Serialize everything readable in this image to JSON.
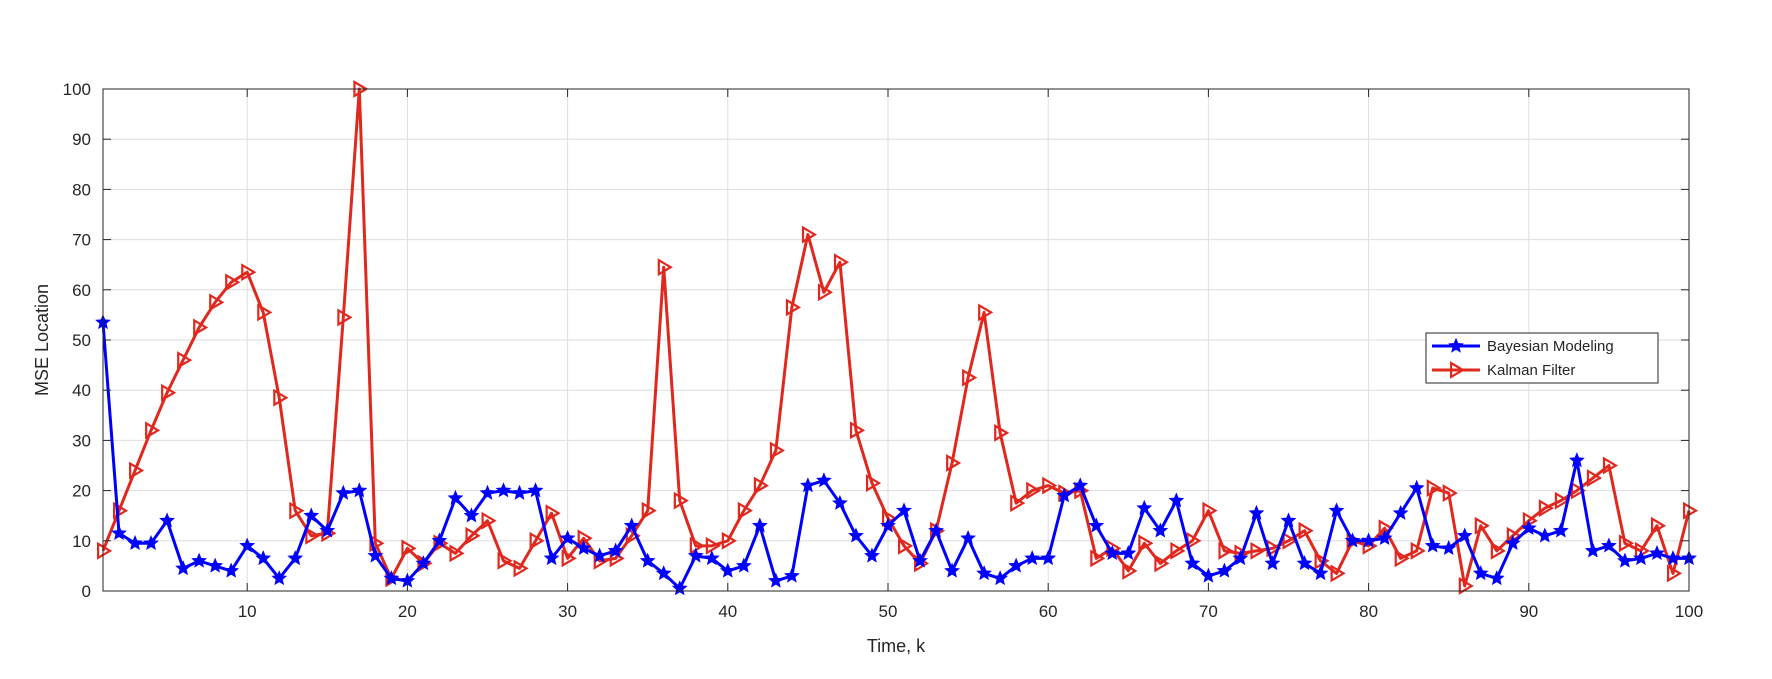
{
  "chart_data": {
    "type": "line",
    "title": "",
    "xlabel": "Time, k",
    "ylabel": "MSE Location",
    "xlim": [
      1,
      100
    ],
    "ylim": [
      0,
      100
    ],
    "xticks": [
      10,
      20,
      30,
      40,
      50,
      60,
      70,
      80,
      90,
      100
    ],
    "yticks": [
      0,
      10,
      20,
      30,
      40,
      50,
      60,
      70,
      80,
      90,
      100
    ],
    "grid": true,
    "legend_position": "right",
    "series": [
      {
        "name": "Bayesian Modeling",
        "color": "#0000ff",
        "marker": "star",
        "x": [
          1,
          2,
          3,
          4,
          5,
          6,
          7,
          8,
          9,
          10,
          11,
          12,
          13,
          14,
          15,
          16,
          17,
          18,
          19,
          20,
          21,
          22,
          23,
          24,
          25,
          26,
          27,
          28,
          29,
          30,
          31,
          32,
          33,
          34,
          35,
          36,
          37,
          38,
          39,
          40,
          41,
          42,
          43,
          44,
          45,
          46,
          47,
          48,
          49,
          50,
          51,
          52,
          53,
          54,
          55,
          56,
          57,
          58,
          59,
          60,
          61,
          62,
          63,
          64,
          65,
          66,
          67,
          68,
          69,
          70,
          71,
          72,
          73,
          74,
          75,
          76,
          77,
          78,
          79,
          80,
          81,
          82,
          83,
          84,
          85,
          86,
          87,
          88,
          89,
          90,
          91,
          92,
          93,
          94,
          95,
          96,
          97,
          98,
          99,
          100
        ],
        "values": [
          53.5,
          11.5,
          9.5,
          9.5,
          14,
          4.5,
          6,
          5,
          4,
          9,
          6.5,
          2.5,
          6.5,
          15,
          12,
          19.5,
          20,
          7,
          2.5,
          2,
          5.5,
          10,
          18.5,
          15,
          19.5,
          20,
          19.5,
          20,
          6.5,
          10.5,
          8.5,
          7,
          8,
          13,
          6,
          3.5,
          0.5,
          7,
          6.5,
          4,
          5,
          13,
          2,
          3,
          21,
          22,
          17.5,
          11,
          7,
          13,
          16,
          6,
          12,
          4,
          10.5,
          3.5,
          2.5,
          5,
          6.5,
          6.5,
          19,
          21,
          13,
          7.5,
          7.5,
          16.5,
          12,
          18,
          5.5,
          3,
          4,
          6.5,
          15.5,
          5.5,
          14,
          5.5,
          3.5,
          16,
          10,
          10,
          10.5,
          15.5,
          20.5,
          9,
          8.5,
          11,
          3.5,
          2.5,
          9.5,
          12.5,
          11,
          12,
          26,
          8,
          9,
          6,
          6.5,
          7.5,
          6.5,
          6.5
        ]
      },
      {
        "name": "Kalman Filter",
        "color": "#e0281e",
        "marker": "triangle-right",
        "x": [
          1,
          2,
          3,
          4,
          5,
          6,
          7,
          8,
          9,
          10,
          11,
          12,
          13,
          14,
          15,
          16,
          17,
          18,
          19,
          20,
          21,
          22,
          23,
          24,
          25,
          26,
          27,
          28,
          29,
          30,
          31,
          32,
          33,
          34,
          35,
          36,
          37,
          38,
          39,
          40,
          41,
          42,
          43,
          44,
          45,
          46,
          47,
          48,
          49,
          50,
          51,
          52,
          53,
          54,
          55,
          56,
          57,
          58,
          59,
          60,
          61,
          62,
          63,
          64,
          65,
          66,
          67,
          68,
          69,
          70,
          71,
          72,
          73,
          74,
          75,
          76,
          77,
          78,
          79,
          80,
          81,
          82,
          83,
          84,
          85,
          86,
          87,
          88,
          89,
          90,
          91,
          92,
          93,
          94,
          95,
          96,
          97,
          98,
          99,
          100
        ],
        "values": [
          8,
          16,
          24,
          32,
          39.5,
          46,
          52.5,
          57.5,
          61.5,
          63.5,
          55.5,
          38.5,
          16,
          11,
          11.5,
          54.5,
          100,
          9.5,
          2.5,
          8.5,
          5.5,
          9.5,
          7.5,
          11,
          14,
          6,
          4.5,
          10,
          15.5,
          6.5,
          10.5,
          6,
          6.5,
          11,
          16,
          64.5,
          18,
          9,
          9,
          10,
          16,
          21,
          28,
          56.5,
          71,
          59.5,
          65.5,
          32,
          21.5,
          14.5,
          9,
          5.5,
          12,
          25.5,
          42.5,
          55.5,
          31.5,
          17.5,
          20,
          21,
          19.5,
          20,
          6.5,
          8.5,
          4,
          9.5,
          5.5,
          8,
          10,
          16,
          8,
          7.5,
          8,
          8.5,
          10,
          12,
          6,
          3.5,
          10,
          9,
          12.5,
          6.5,
          8,
          20.5,
          19.5,
          1,
          13,
          8,
          11,
          14,
          16.5,
          18,
          20,
          22.5,
          25,
          9.5,
          8,
          13,
          3.5,
          16
        ]
      }
    ]
  }
}
